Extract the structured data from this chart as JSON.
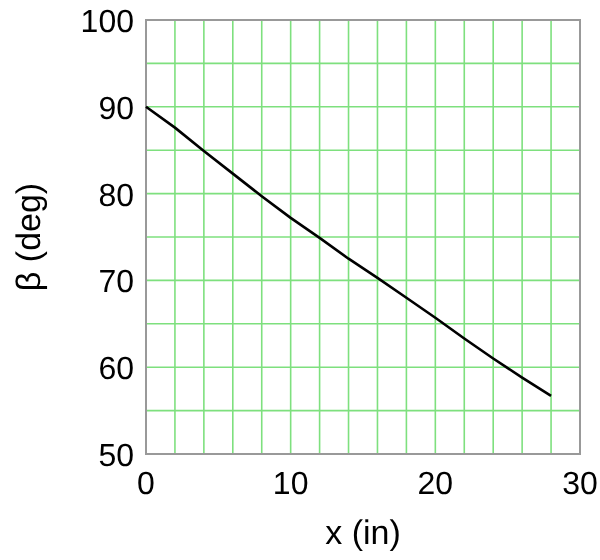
{
  "chart_data": {
    "type": "line",
    "xlabel": "x (in)",
    "ylabel": "β (deg)",
    "x": [
      0,
      2,
      4,
      6,
      8,
      10,
      12,
      14,
      16,
      18,
      20,
      22,
      24,
      26,
      28
    ],
    "series": [
      {
        "color": "#000000",
        "values": [
          90,
          87.6,
          84.9,
          82.3,
          79.7,
          77.2,
          74.9,
          72.5,
          70.3,
          68.0,
          65.7,
          63.3,
          61.0,
          58.8,
          56.7
        ]
      }
    ],
    "xlim": [
      0,
      30
    ],
    "ylim": [
      50,
      100
    ],
    "xticks": [
      0,
      {
        "value": 2,
        "label": null
      },
      {
        "value": 4,
        "label": null
      },
      {
        "value": 6,
        "label": null
      },
      {
        "value": 8,
        "label": null
      },
      10,
      {
        "value": 12,
        "label": null
      },
      {
        "value": 14,
        "label": null
      },
      {
        "value": 16,
        "label": null
      },
      {
        "value": 18,
        "label": null
      },
      20,
      {
        "value": 22,
        "label": null
      },
      {
        "value": 24,
        "label": null
      },
      {
        "value": 26,
        "label": null
      },
      {
        "value": 28,
        "label": null
      },
      30
    ],
    "yticks": [
      50,
      {
        "value": 55,
        "label": null
      },
      60,
      {
        "value": 65,
        "label": null
      },
      70,
      {
        "value": 75,
        "label": null
      },
      80,
      {
        "value": 85,
        "label": null
      },
      90,
      {
        "value": 95,
        "label": null
      },
      100
    ],
    "grid": true,
    "marker": "none",
    "line_style": "solid"
  }
}
